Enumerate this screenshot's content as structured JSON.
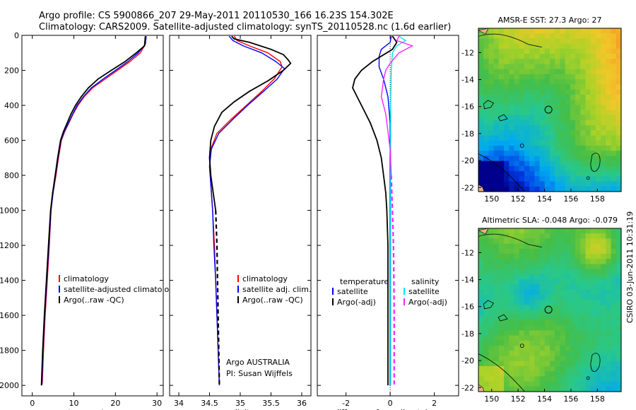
{
  "header": {
    "line1": "Argo profile: CS 5900866_207 29-May-2011 20110530_166 16.23S 154.302E",
    "line2": "Climatology: CARS2009. Satellite-adjusted climatology: synTS_20110528.nc (1.6d earlier)"
  },
  "side_stamp": "CSIRO 03-Jun-2011 10:31:19",
  "credits": {
    "line1": "Argo AUSTRALIA",
    "line2": "PI: Susan Wijffels"
  },
  "colors": {
    "clim": "#ff0000",
    "sat": "#0000ff",
    "argo": "#000000",
    "sal_sat": "#00e5ee",
    "sal_argo": "#ff22ff"
  },
  "chart_data": [
    {
      "id": "temperature",
      "type": "line",
      "xlabel": "temperature",
      "ylabel": "",
      "xlim": [
        -2.5,
        31.5
      ],
      "ylim": [
        2060,
        0
      ],
      "xticks": [
        "0",
        "10",
        "20",
        "30"
      ],
      "xtick_values": [
        0,
        10,
        20,
        30
      ],
      "yticks": [
        "0",
        "200",
        "400",
        "600",
        "800",
        "1000",
        "1200",
        "1400",
        "1600",
        "1800",
        "2000"
      ],
      "ytick_values": [
        0,
        200,
        400,
        600,
        800,
        1000,
        1200,
        1400,
        1600,
        1800,
        2000
      ],
      "legend": [
        "climatology",
        "satellite-adjusted climatology",
        "Argo(..raw -QC)"
      ],
      "series": [
        {
          "name": "climatology",
          "color": "red",
          "dash": false,
          "points": [
            [
              27.3,
              5
            ],
            [
              27.2,
              50
            ],
            [
              26.0,
              100
            ],
            [
              23.5,
              150
            ],
            [
              20.5,
              200
            ],
            [
              17.5,
              250
            ],
            [
              14.5,
              300
            ],
            [
              12.5,
              350
            ],
            [
              11.0,
              400
            ],
            [
              9.8,
              450
            ],
            [
              8.8,
              500
            ],
            [
              7.8,
              550
            ],
            [
              7.0,
              600
            ],
            [
              6.3,
              700
            ],
            [
              5.7,
              800
            ],
            [
              5.0,
              900
            ],
            [
              4.5,
              1000
            ],
            [
              4.1,
              1200
            ],
            [
              3.6,
              1400
            ],
            [
              3.1,
              1600
            ],
            [
              2.7,
              1800
            ],
            [
              2.4,
              1990
            ]
          ]
        },
        {
          "name": "satellite-adjusted climatology",
          "color": "blue",
          "dash": false,
          "points": [
            [
              27.4,
              5
            ],
            [
              27.2,
              50
            ],
            [
              25.5,
              100
            ],
            [
              23.0,
              150
            ],
            [
              20.0,
              200
            ],
            [
              17.0,
              250
            ],
            [
              14.2,
              300
            ],
            [
              12.3,
              350
            ],
            [
              10.8,
              400
            ],
            [
              9.7,
              450
            ],
            [
              8.7,
              500
            ],
            [
              7.7,
              550
            ],
            [
              6.9,
              600
            ],
            [
              6.2,
              700
            ],
            [
              5.6,
              800
            ],
            [
              5.0,
              900
            ],
            [
              4.5,
              1000
            ],
            [
              4.0,
              1200
            ],
            [
              3.5,
              1400
            ],
            [
              3.0,
              1600
            ],
            [
              2.6,
              1800
            ],
            [
              2.3,
              2000
            ]
          ]
        },
        {
          "name": "Argo(..raw -QC)",
          "color": "black",
          "dash": false,
          "points": [
            [
              27.2,
              5
            ],
            [
              27.0,
              60
            ],
            [
              25.0,
              100
            ],
            [
              22.3,
              150
            ],
            [
              19.0,
              200
            ],
            [
              15.8,
              250
            ],
            [
              13.5,
              300
            ],
            [
              11.8,
              350
            ],
            [
              10.4,
              400
            ],
            [
              9.3,
              450
            ],
            [
              8.4,
              500
            ],
            [
              7.5,
              550
            ],
            [
              6.8,
              600
            ],
            [
              6.1,
              700
            ],
            [
              5.5,
              800
            ],
            [
              4.9,
              900
            ],
            [
              4.4,
              1000
            ],
            [
              3.9,
              1200
            ],
            [
              3.4,
              1400
            ],
            [
              2.9,
              1600
            ],
            [
              2.5,
              1800
            ],
            [
              2.2,
              2000
            ]
          ]
        }
      ]
    },
    {
      "id": "salinity",
      "type": "line",
      "xlabel": "salinity",
      "ylabel": "",
      "xlim": [
        33.85,
        36.15
      ],
      "ylim": [
        2060,
        0
      ],
      "xticks": [
        "34",
        "34.5",
        "35",
        "35.5",
        "36"
      ],
      "xtick_values": [
        34,
        34.5,
        35,
        35.5,
        36
      ],
      "yticks": [],
      "ytick_values": [],
      "legend": [
        "climatology",
        "satellite adj. clim.",
        "Argo(..raw -QC)"
      ],
      "series": [
        {
          "name": "climatology",
          "color": "red",
          "dash": false,
          "points": [
            [
              34.9,
              5
            ],
            [
              34.95,
              30
            ],
            [
              35.15,
              60
            ],
            [
              35.45,
              100
            ],
            [
              35.65,
              150
            ],
            [
              35.68,
              180
            ],
            [
              35.55,
              250
            ],
            [
              35.35,
              320
            ],
            [
              35.1,
              400
            ],
            [
              34.85,
              480
            ],
            [
              34.62,
              560
            ],
            [
              34.52,
              650
            ],
            [
              34.5,
              750
            ],
            [
              34.52,
              850
            ],
            [
              34.55,
              1000
            ],
            [
              34.58,
              1200
            ],
            [
              34.6,
              1400
            ],
            [
              34.62,
              1600
            ],
            [
              34.64,
              1800
            ],
            [
              34.66,
              1990
            ]
          ]
        },
        {
          "name": "satellite adj. clim.",
          "color": "blue",
          "dash": false,
          "points": [
            [
              34.82,
              5
            ],
            [
              34.88,
              30
            ],
            [
              35.05,
              60
            ],
            [
              35.35,
              100
            ],
            [
              35.58,
              150
            ],
            [
              35.72,
              190
            ],
            [
              35.6,
              250
            ],
            [
              35.38,
              320
            ],
            [
              35.12,
              400
            ],
            [
              34.88,
              480
            ],
            [
              34.65,
              560
            ],
            [
              34.53,
              650
            ],
            [
              34.5,
              750
            ],
            [
              34.52,
              850
            ],
            [
              34.55,
              1000
            ],
            [
              34.57,
              1200
            ],
            [
              34.6,
              1400
            ],
            [
              34.62,
              1600
            ],
            [
              34.64,
              1800
            ],
            [
              34.66,
              2000
            ]
          ]
        },
        {
          "name": "Argo(..raw -QC)",
          "color": "black",
          "dash": false,
          "points": [
            [
              34.86,
              5
            ],
            [
              34.9,
              20
            ],
            [
              35.15,
              40
            ],
            [
              35.5,
              80
            ],
            [
              35.7,
              110
            ],
            [
              35.78,
              140
            ],
            [
              35.82,
              160
            ],
            [
              35.7,
              200
            ],
            [
              35.45,
              260
            ],
            [
              35.15,
              320
            ],
            [
              34.9,
              380
            ],
            [
              34.7,
              440
            ],
            [
              34.58,
              520
            ],
            [
              34.52,
              600
            ],
            [
              34.5,
              700
            ],
            [
              34.52,
              800
            ],
            [
              34.56,
              900
            ],
            [
              34.6,
              1000
            ]
          ]
        },
        {
          "name": "Argo(..raw -QC) deep",
          "color": "black",
          "dash": true,
          "points": [
            [
              34.6,
              1000
            ],
            [
              34.62,
              1200
            ],
            [
              34.63,
              1400
            ],
            [
              34.64,
              1600
            ],
            [
              34.65,
              1800
            ],
            [
              34.66,
              2000
            ]
          ]
        }
      ]
    },
    {
      "id": "difference",
      "type": "line",
      "xlabel": "difference from climatology",
      "ylabel": "",
      "xlim": [
        -3.3,
        3.1
      ],
      "ylim": [
        2060,
        0
      ],
      "xticks": [
        "-2",
        "0",
        "2"
      ],
      "xtick_values": [
        -2,
        0,
        2
      ],
      "yticks": [],
      "ytick_values": [],
      "legend_left_title": "temperature",
      "legend_right_title": "salinity",
      "legend": [
        "satellite",
        "Argo(-adj)",
        "satellite",
        "Argo(-adj)"
      ],
      "series": [
        {
          "name": "temperature satellite",
          "color": "blue",
          "dash": false,
          "points": [
            [
              0.05,
              5
            ],
            [
              0.0,
              40
            ],
            [
              -0.4,
              80
            ],
            [
              -0.5,
              120
            ],
            [
              -0.5,
              180
            ],
            [
              -0.3,
              250
            ],
            [
              -0.1,
              350
            ],
            [
              0.0,
              500
            ],
            [
              0.0,
              1000
            ],
            [
              0.0,
              1500
            ],
            [
              0.0,
              2000
            ]
          ]
        },
        {
          "name": "temperature Argo(-adj)",
          "color": "black",
          "dash": false,
          "points": [
            [
              0.1,
              5
            ],
            [
              0.3,
              40
            ],
            [
              0.1,
              80
            ],
            [
              -0.8,
              150
            ],
            [
              -1.3,
              200
            ],
            [
              -1.6,
              250
            ],
            [
              -1.7,
              300
            ],
            [
              -1.3,
              400
            ],
            [
              -0.9,
              500
            ],
            [
              -0.6,
              600
            ],
            [
              -0.4,
              700
            ],
            [
              -0.3,
              800
            ],
            [
              -0.2,
              900
            ],
            [
              -0.15,
              1000
            ],
            [
              -0.1,
              1200
            ],
            [
              -0.1,
              1500
            ],
            [
              -0.1,
              1800
            ],
            [
              -0.1,
              2000
            ]
          ]
        },
        {
          "name": "salinity satellite",
          "color": "cyan",
          "dash": false,
          "points": [
            [
              0.4,
              5
            ],
            [
              0.7,
              30
            ],
            [
              0.3,
              60
            ],
            [
              0.1,
              100
            ],
            [
              0.05,
              200
            ],
            [
              0.02,
              400
            ],
            [
              0.02,
              700
            ],
            [
              0.02,
              1000
            ],
            [
              0.02,
              1500
            ],
            [
              0.02,
              2000
            ]
          ]
        },
        {
          "name": "salinity Argo(-adj)",
          "color": "magenta",
          "dash": false,
          "points": [
            [
              0.4,
              5
            ],
            [
              0.3,
              30
            ],
            [
              1.0,
              60
            ],
            [
              0.4,
              100
            ],
            [
              0.0,
              160
            ],
            [
              -0.2,
              200
            ],
            [
              -0.3,
              250
            ],
            [
              -0.4,
              350
            ],
            [
              -0.2,
              450
            ],
            [
              -0.1,
              550
            ],
            [
              0.0,
              650
            ],
            [
              0.05,
              800
            ]
          ]
        },
        {
          "name": "salinity Argo(-adj) deep",
          "color": "magenta",
          "dash": true,
          "points": [
            [
              0.05,
              800
            ],
            [
              0.1,
              1000
            ],
            [
              0.15,
              1200
            ],
            [
              0.17,
              1400
            ],
            [
              0.18,
              1600
            ],
            [
              0.18,
              1800
            ],
            [
              0.18,
              2000
            ]
          ]
        }
      ]
    }
  ],
  "maps": [
    {
      "id": "sst",
      "title": "AMSR-E SST: 27.3  Argo: 27",
      "kind": "sst",
      "yticks": [
        "-12",
        "-14",
        "-16",
        "-18",
        "-20",
        "-22"
      ],
      "ytick_values": [
        -12,
        -14,
        -16,
        -18,
        -20,
        -22
      ],
      "xticks": [
        "150",
        "152",
        "154",
        "156",
        "158"
      ],
      "xtick_values": [
        150,
        152,
        154,
        156,
        158
      ],
      "lon_range": [
        149,
        159.8
      ],
      "lat_range": [
        -22.3,
        -10.2
      ],
      "profile_marker": [
        154.3,
        -16.23
      ]
    },
    {
      "id": "sla",
      "title": "Altimetric SLA: -0.048  Argo: -0.079",
      "kind": "sla",
      "yticks": [
        "-12",
        "-14",
        "-16",
        "-18",
        "-20",
        "-22"
      ],
      "ytick_values": [
        -12,
        -14,
        -16,
        -18,
        -20,
        -22
      ],
      "xticks": [
        "150",
        "152",
        "154",
        "156",
        "158"
      ],
      "xtick_values": [
        150,
        152,
        154,
        156,
        158
      ],
      "lon_range": [
        149,
        159.8
      ],
      "lat_range": [
        -22.3,
        -10.2
      ],
      "profile_marker": [
        154.3,
        -16.23
      ]
    }
  ]
}
